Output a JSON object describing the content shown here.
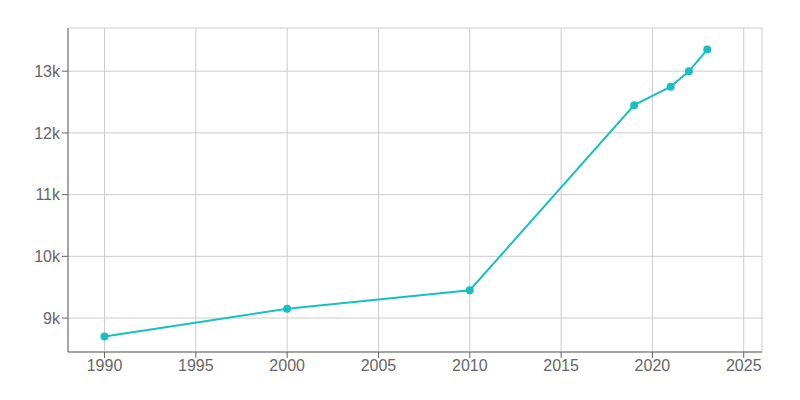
{
  "chart_data": {
    "type": "line",
    "x": [
      1990,
      2000,
      2010,
      2019,
      2021,
      2022,
      2023
    ],
    "values": [
      8700,
      9150,
      9450,
      12450,
      12750,
      13000,
      13350
    ],
    "color": "#18c0c0",
    "marker": "circle",
    "xlim": [
      1988,
      2026
    ],
    "ylim": [
      8450,
      13700
    ],
    "xticks": [
      1990,
      1995,
      2000,
      2005,
      2010,
      2015,
      2020,
      2025
    ],
    "yticks": [
      {
        "value": 9000,
        "label": "9k"
      },
      {
        "value": 10000,
        "label": "10k"
      },
      {
        "value": 11000,
        "label": "11k"
      },
      {
        "value": 12000,
        "label": "12k"
      },
      {
        "value": 13000,
        "label": "13k"
      }
    ],
    "grid": true
  }
}
